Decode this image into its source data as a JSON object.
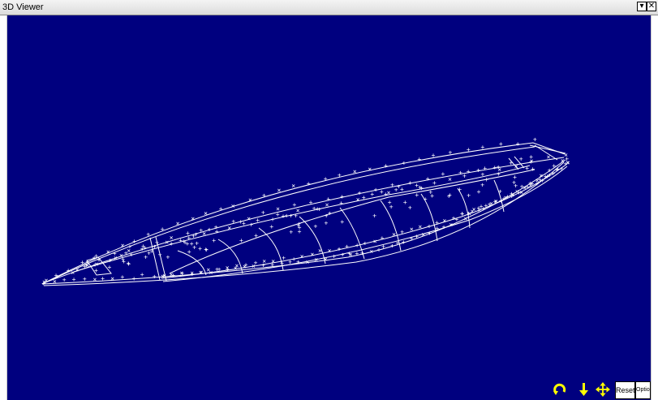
{
  "window": {
    "title": "3D Viewer",
    "dropdown_icon": "chevron-down-icon",
    "close_icon": "close-icon"
  },
  "viewport": {
    "background": "#00007f",
    "wire_color": "#ffffff"
  },
  "toolbar": {
    "rotate_icon": "rotate-icon",
    "move_vertical_icon": "move-vertical-icon",
    "pan_icon": "pan-icon",
    "icon_color": "#ffff00",
    "reset_label": "Reset",
    "options_label": "Options"
  }
}
